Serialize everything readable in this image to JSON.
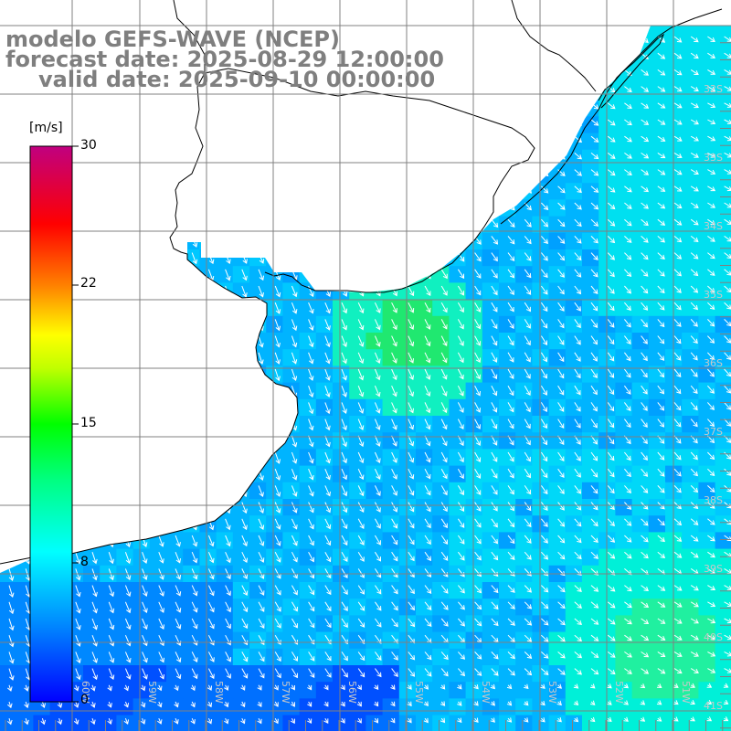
{
  "titles": {
    "line1": "modelo GEFS-WAVE (NCEP)",
    "line2": "forecast date: 2025-08-29 12:00:00",
    "line3": "valid date: 2025-09-10 00:00:00"
  },
  "colorbar": {
    "unit": "[m/s]",
    "ticks": [
      "30",
      "22",
      "15",
      "8",
      "0"
    ],
    "range": [
      0,
      30
    ],
    "colors": [
      "#0000ff",
      "#00a0ff",
      "#00ffff",
      "#00ff00",
      "#ffff00",
      "#ff8000",
      "#ff0000",
      "#c00080"
    ]
  },
  "map": {
    "lat_labels": [
      "32S",
      "33S",
      "34S",
      "35S",
      "36S",
      "37S",
      "38S",
      "39S",
      "40S",
      "41S"
    ],
    "lon_labels": [
      "60W",
      "59W",
      "58W",
      "57W",
      "56W",
      "55W",
      "54W",
      "53W",
      "52W",
      "51W"
    ],
    "wind_color": "#ffffff",
    "land_color": "#ffffff",
    "grid_color": "#808080"
  }
}
